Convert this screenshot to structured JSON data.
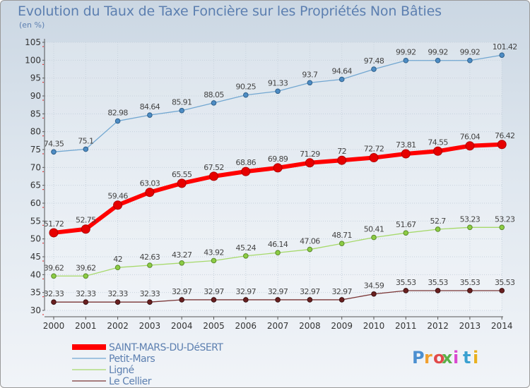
{
  "chart_data": {
    "type": "line",
    "title": "Evolution du Taux de Taxe Foncière sur les Propriétés Non Bâties",
    "subtitle": "(en %)",
    "xlabel": "",
    "ylabel": "",
    "x": [
      "2000",
      "2001",
      "2002",
      "2003",
      "2004",
      "2005",
      "2006",
      "2007",
      "2008",
      "2009",
      "2010",
      "2011",
      "2012",
      "2013",
      "2014"
    ],
    "ylim": [
      30,
      105
    ],
    "yticks": [
      30,
      35,
      40,
      45,
      50,
      55,
      60,
      65,
      70,
      75,
      80,
      85,
      90,
      95,
      100,
      105
    ],
    "grid": true,
    "legend_position": "bottom-left",
    "series": [
      {
        "name": "SAINT-MARS-DU-DéSERT",
        "color": "#ff0000",
        "labels": [
          "51.72",
          "52.75",
          "59.46",
          "63.03",
          "65.55",
          "67.52",
          "68.86",
          "69.89",
          "71.29",
          "72",
          "72.72",
          "73.81",
          "74.55",
          "76.04",
          "76.42"
        ],
        "values": [
          51.72,
          52.75,
          59.46,
          63.03,
          65.55,
          67.52,
          68.86,
          69.89,
          71.29,
          72,
          72.72,
          73.81,
          74.55,
          76.04,
          76.42
        ]
      },
      {
        "name": "Petit-Mars",
        "color": "#72a7d1",
        "labels": [
          "74.35",
          "75.1",
          "82.98",
          "84.64",
          "85.91",
          "88.05",
          "90.25",
          "91.33",
          "93.7",
          "94.64",
          "97.48",
          "99.92",
          "99.92",
          "99.92",
          "101.42"
        ],
        "values": [
          74.35,
          75.1,
          82.98,
          84.64,
          85.91,
          88.05,
          90.25,
          91.33,
          93.7,
          94.64,
          97.48,
          99.92,
          99.92,
          99.92,
          101.42
        ]
      },
      {
        "name": "Ligné",
        "color": "#a6d96a",
        "labels": [
          "39.62",
          "39.62",
          "42",
          "42.63",
          "43.27",
          "43.92",
          "45.24",
          "46.14",
          "47.06",
          "48.71",
          "50.41",
          "51.67",
          "52.7",
          "53.23",
          "53.23"
        ],
        "values": [
          39.62,
          39.62,
          42,
          42.63,
          43.27,
          43.92,
          45.24,
          46.14,
          47.06,
          48.71,
          50.41,
          51.67,
          52.7,
          53.23,
          53.23
        ]
      },
      {
        "name": "Le Cellier",
        "color": "#7a3535",
        "labels": [
          "32.33",
          "32.33",
          "32.33",
          "32.33",
          "32.97",
          "32.97",
          "32.97",
          "32.97",
          "32.97",
          "32.97",
          "34.59",
          "35.53",
          "35.53",
          "35.53",
          "35.53"
        ],
        "values": [
          32.33,
          32.33,
          32.33,
          32.33,
          32.97,
          32.97,
          32.97,
          32.97,
          32.97,
          32.97,
          34.59,
          35.53,
          35.53,
          35.53,
          35.53
        ]
      }
    ]
  },
  "logo": {
    "text": "Proxiti",
    "colors": [
      "#4b8fd0",
      "#f0a030",
      "#e04a4a",
      "#5ab04a",
      "#d94ad0",
      "#3aa0d0",
      "#e8b020"
    ]
  },
  "colors": {
    "text": "#5c7fb0",
    "label": "#444444",
    "background": "#dfe7ef"
  }
}
